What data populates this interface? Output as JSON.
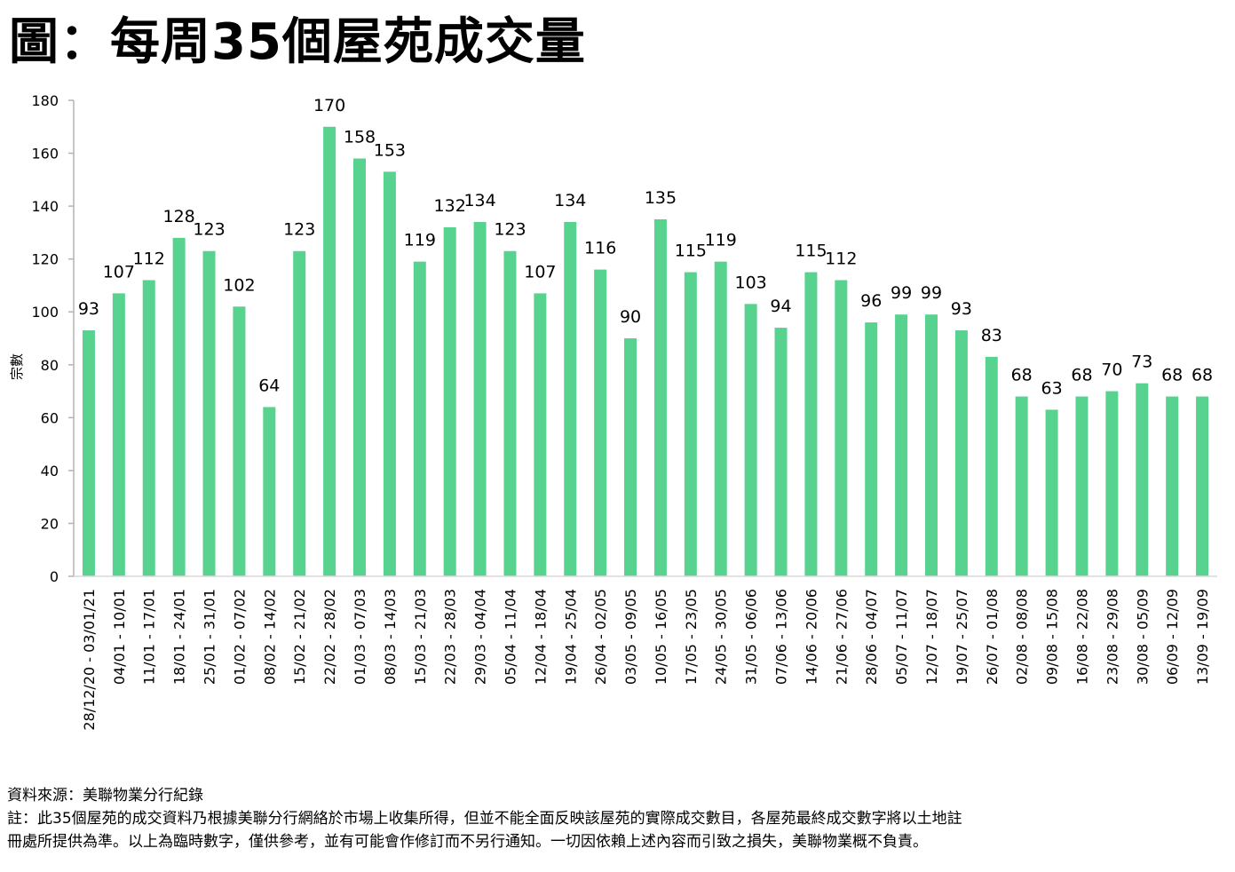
{
  "page": {
    "title": "圖：每周35個屋苑成交量",
    "source": "資料來源：美聯物業分行紀錄",
    "note_line1": "註：此35個屋苑的成交資料乃根據美聯分行網絡於市場上收集所得，但並不能全面反映該屋苑的實際成交數目，各屋苑最終成交數字將以土地註",
    "note_line2": "冊處所提供為準。以上為臨時數字，僅供參考，並有可能會作修訂而不另行通知。一切因依賴上述內容而引致之損失，美聯物業概不負責。"
  },
  "chart_data": {
    "type": "bar",
    "title": "每周35個屋苑成交量",
    "xlabel": "",
    "ylabel": "宗數",
    "ylim": [
      0,
      180
    ],
    "yticks": [
      0,
      20,
      40,
      60,
      80,
      100,
      120,
      140,
      160,
      180
    ],
    "grid": false,
    "legend": "none",
    "bar_color": "#57d28f",
    "categories": [
      "28/12/20 - 03/01/21",
      "04/01 - 10/01",
      "11/01 - 17/01",
      "18/01 - 24/01",
      "25/01 - 31/01",
      "01/02 - 07/02",
      "08/02 - 14/02",
      "15/02 - 21/02",
      "22/02 - 28/02",
      "01/03 - 07/03",
      "08/03 - 14/03",
      "15/03 - 21/03",
      "22/03 - 28/03",
      "29/03 - 04/04",
      "05/04 - 11/04",
      "12/04 - 18/04",
      "19/04 - 25/04",
      "26/04 - 02/05",
      "03/05 - 09/05",
      "10/05 - 16/05",
      "17/05 - 23/05",
      "24/05 - 30/05",
      "31/05 - 06/06",
      "07/06 - 13/06",
      "14/06 - 20/06",
      "21/06 - 27/06",
      "28/06 - 04/07",
      "05/07 - 11/07",
      "12/07 - 18/07",
      "19/07 - 25/07",
      "26/07 - 01/08",
      "02/08 - 08/08",
      "09/08 - 15/08",
      "16/08 - 22/08",
      "23/08 - 29/08",
      "30/08 - 05/09",
      "06/09 - 12/09",
      "13/09 - 19/09"
    ],
    "values": [
      93,
      107,
      112,
      128,
      123,
      102,
      64,
      123,
      170,
      158,
      153,
      119,
      132,
      134,
      123,
      107,
      134,
      116,
      90,
      135,
      115,
      119,
      103,
      94,
      115,
      112,
      96,
      99,
      99,
      93,
      83,
      68,
      63,
      68,
      70,
      73,
      68,
      68
    ]
  }
}
